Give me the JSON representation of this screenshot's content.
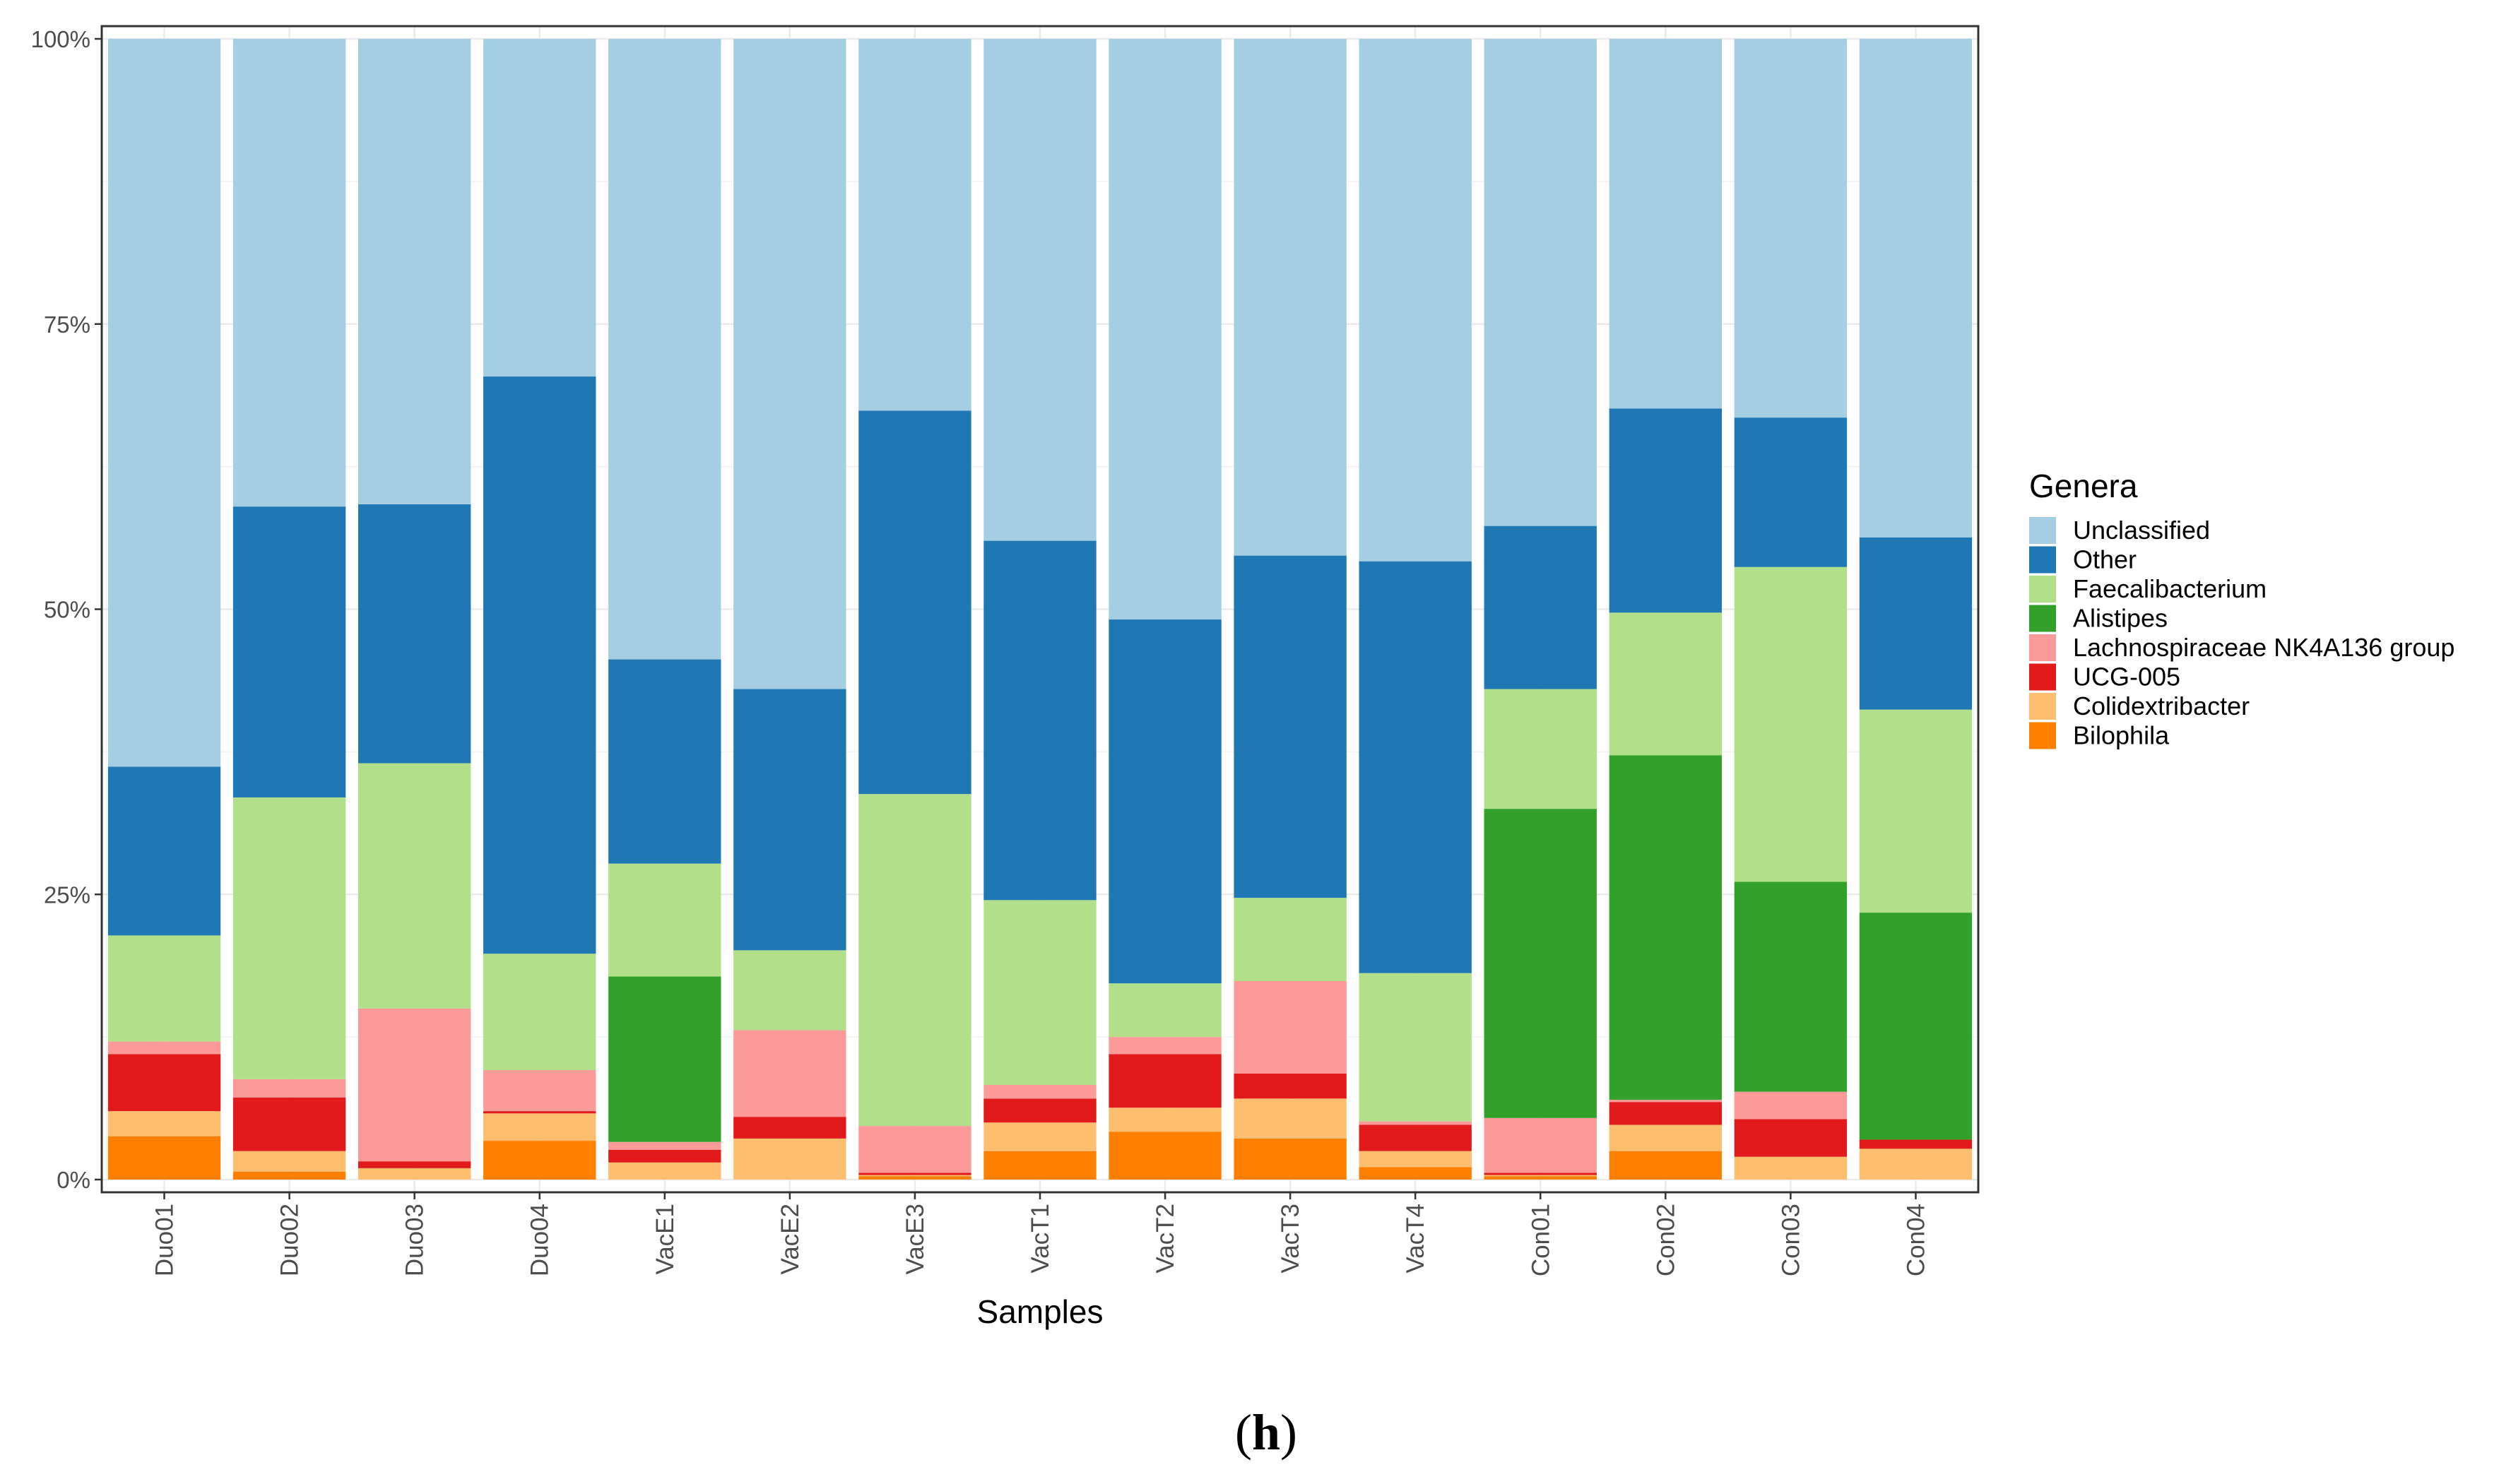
{
  "chart_data": {
    "type": "bar",
    "stacked": true,
    "xlabel": "Samples",
    "ylabel": "",
    "ylim": [
      0,
      1
    ],
    "yticks": [
      "0%",
      "25%",
      "50%",
      "75%",
      "100%"
    ],
    "ytick_values": [
      0,
      0.25,
      0.5,
      0.75,
      1.0
    ],
    "grid": true,
    "legend_title": "Genera",
    "legend_position": "right",
    "panel_label_open": "(",
    "panel_label_letter": "h",
    "panel_label_close": ")",
    "categories": [
      "Duo01",
      "Duo02",
      "Duo03",
      "Duo04",
      "VacE1",
      "VacE2",
      "VacE3",
      "VacT1",
      "VacT2",
      "VacT3",
      "VacT4",
      "Con01",
      "Con02",
      "Con03",
      "Con04"
    ],
    "series": [
      {
        "name": "Bilophila",
        "color": "#ff7f00",
        "values": [
          0.038,
          0.007,
          0.0,
          0.034,
          0.0,
          0.0,
          0.003,
          0.025,
          0.042,
          0.036,
          0.011,
          0.003,
          0.025,
          0.0,
          0.0
        ]
      },
      {
        "name": "Colidextribacter",
        "color": "#fdbf6f",
        "values": [
          0.022,
          0.018,
          0.01,
          0.024,
          0.015,
          0.036,
          0.001,
          0.025,
          0.021,
          0.035,
          0.014,
          0.001,
          0.023,
          0.02,
          0.027
        ]
      },
      {
        "name": "UCG-005",
        "color": "#e31a1c",
        "values": [
          0.05,
          0.047,
          0.006,
          0.002,
          0.011,
          0.019,
          0.002,
          0.021,
          0.047,
          0.022,
          0.023,
          0.002,
          0.02,
          0.033,
          0.008
        ]
      },
      {
        "name": "Lachnospiraceae NK4A136 group",
        "color": "#fb9a99",
        "values": [
          0.011,
          0.016,
          0.134,
          0.036,
          0.007,
          0.076,
          0.041,
          0.012,
          0.015,
          0.081,
          0.003,
          0.048,
          0.002,
          0.024,
          0.0
        ]
      },
      {
        "name": "Alistipes",
        "color": "#33a02c",
        "values": [
          0.0,
          0.0,
          0.0,
          0.0,
          0.145,
          0.0,
          0.0,
          0.0,
          0.0,
          0.0,
          0.0,
          0.271,
          0.302,
          0.184,
          0.199
        ]
      },
      {
        "name": "Faecalibacterium",
        "color": "#b2df8a",
        "values": [
          0.093,
          0.247,
          0.215,
          0.102,
          0.099,
          0.07,
          0.291,
          0.162,
          0.047,
          0.073,
          0.13,
          0.105,
          0.125,
          0.276,
          0.178
        ]
      },
      {
        "name": "Other",
        "color": "#1f78b4",
        "values": [
          0.148,
          0.255,
          0.227,
          0.506,
          0.179,
          0.229,
          0.336,
          0.315,
          0.319,
          0.3,
          0.361,
          0.143,
          0.179,
          0.131,
          0.151
        ]
      },
      {
        "name": " Unclassified",
        "color": "#a6cee3",
        "values": [
          0.638,
          0.41,
          0.408,
          0.296,
          0.544,
          0.57,
          0.326,
          0.44,
          0.509,
          0.453,
          0.458,
          0.427,
          0.324,
          0.332,
          0.437
        ]
      }
    ],
    "legend_order": [
      " Unclassified",
      "Other",
      "Faecalibacterium",
      "Alistipes",
      "Lachnospiraceae NK4A136 group",
      "UCG-005",
      "Colidextribacter",
      "Bilophila"
    ]
  }
}
